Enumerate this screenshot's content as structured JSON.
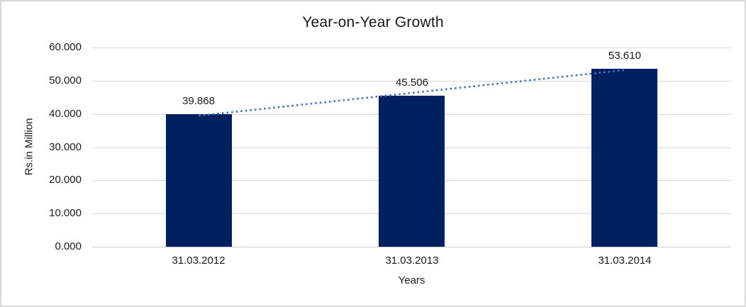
{
  "frame": {
    "background": "#ffffff",
    "border_color": "#d8d8d8"
  },
  "chart_data": {
    "type": "bar",
    "title": "Year-on-Year Growth",
    "categories": [
      "31.03.2012",
      "31.03.2013",
      "31.03.2014"
    ],
    "values": [
      39.868,
      45.506,
      53.61
    ],
    "data_labels": [
      "39.868",
      "45.506",
      "53.610"
    ],
    "xlabel": "Years",
    "ylabel": "Rs.in Million",
    "ylim": [
      0,
      60
    ],
    "ytick_interval": 10,
    "ytick_labels": [
      "0.000",
      "10.000",
      "20.000",
      "30.000",
      "40.000",
      "50.000",
      "60.000"
    ],
    "grid": true,
    "legend": "none",
    "bar_color": "#002060",
    "gridline_color": "#d9d9d9",
    "axis_line_color": "#cfcfcf",
    "text_color": "#1a1a1a",
    "trendline": {
      "type": "linear",
      "style": "dotted",
      "color": "#4472c4"
    }
  }
}
